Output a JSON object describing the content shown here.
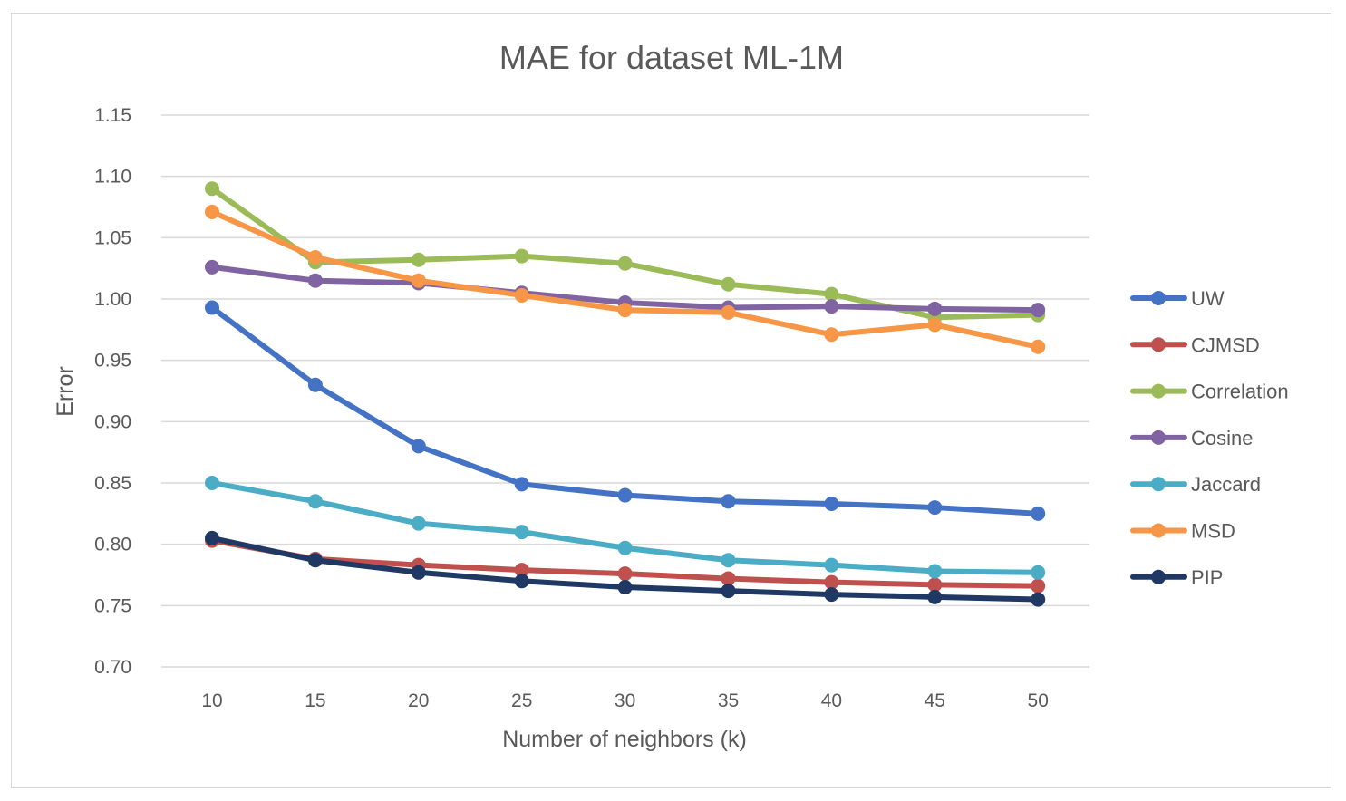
{
  "chart_data": {
    "type": "line",
    "title": "MAE for dataset ML-1M",
    "xlabel": "Number of neighbors (k)",
    "ylabel": "Error",
    "ylim": [
      0.7,
      1.15
    ],
    "yticks": [
      "0.70",
      "0.75",
      "0.80",
      "0.85",
      "0.90",
      "0.95",
      "1.00",
      "1.05",
      "1.10",
      "1.15"
    ],
    "categories": [
      "10",
      "15",
      "20",
      "25",
      "30",
      "35",
      "40",
      "45",
      "50"
    ],
    "legend_position": "right",
    "series": [
      {
        "name": "UW",
        "color": "#4472c4",
        "values": [
          0.993,
          0.93,
          0.88,
          0.849,
          0.84,
          0.835,
          0.833,
          0.83,
          0.825
        ]
      },
      {
        "name": "CJMSD",
        "color": "#c0504d",
        "values": [
          0.803,
          0.788,
          0.783,
          0.779,
          0.776,
          0.772,
          0.769,
          0.767,
          0.766
        ]
      },
      {
        "name": "Correlation",
        "color": "#9bbb59",
        "values": [
          1.09,
          1.03,
          1.032,
          1.035,
          1.029,
          1.012,
          1.004,
          0.985,
          0.987
        ]
      },
      {
        "name": "Cosine",
        "color": "#8064a2",
        "values": [
          1.026,
          1.015,
          1.013,
          1.005,
          0.997,
          0.993,
          0.994,
          0.992,
          0.991
        ]
      },
      {
        "name": "Jaccard",
        "color": "#4bacc6",
        "values": [
          0.85,
          0.835,
          0.817,
          0.81,
          0.797,
          0.787,
          0.783,
          0.778,
          0.777
        ]
      },
      {
        "name": "MSD",
        "color": "#f79646",
        "values": [
          1.071,
          1.034,
          1.015,
          1.003,
          0.991,
          0.989,
          0.971,
          0.979,
          0.961
        ]
      },
      {
        "name": "PIP",
        "color": "#1f3864",
        "values": [
          0.805,
          0.787,
          0.777,
          0.77,
          0.765,
          0.762,
          0.759,
          0.757,
          0.755
        ]
      }
    ]
  }
}
